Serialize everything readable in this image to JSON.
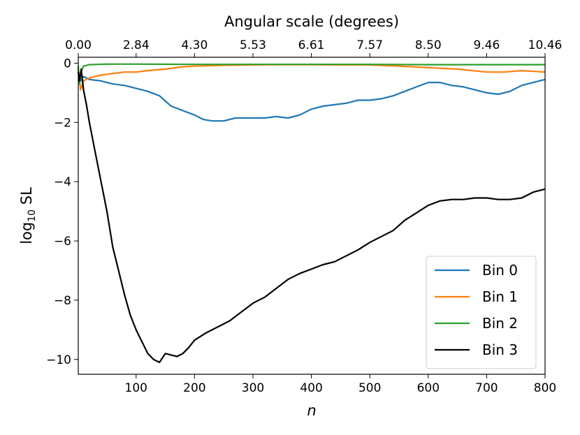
{
  "chart_data": {
    "type": "line",
    "xlabel": "n",
    "ylabel": "log",
    "ylabel_subscript": "10",
    "ylabel_suffix": " SL",
    "top_xlabel": "Angular scale (degrees)",
    "xlim": [
      1,
      800
    ],
    "ylim": [
      -10.5,
      0.2
    ],
    "x_ticks": [
      {
        "value": 100,
        "label": "100"
      },
      {
        "value": 200,
        "label": "200"
      },
      {
        "value": 300,
        "label": "300"
      },
      {
        "value": 400,
        "label": "400"
      },
      {
        "value": 500,
        "label": "500"
      },
      {
        "value": 600,
        "label": "600"
      },
      {
        "value": 700,
        "label": "700"
      },
      {
        "value": 800,
        "label": "800"
      }
    ],
    "y_ticks": [
      {
        "value": 0,
        "label": "0"
      },
      {
        "value": -2,
        "label": "−2"
      },
      {
        "value": -4,
        "label": "−4"
      },
      {
        "value": -6,
        "label": "−6"
      },
      {
        "value": -8,
        "label": "−8"
      },
      {
        "value": -10,
        "label": "−10"
      }
    ],
    "top_ticks": [
      {
        "value": 1,
        "label": "0.00"
      },
      {
        "value": 100,
        "label": "2.84"
      },
      {
        "value": 200,
        "label": "4.30"
      },
      {
        "value": 300,
        "label": "5.53"
      },
      {
        "value": 400,
        "label": "6.61"
      },
      {
        "value": 500,
        "label": "7.57"
      },
      {
        "value": 600,
        "label": "8.50"
      },
      {
        "value": 700,
        "label": "9.46"
      },
      {
        "value": 800,
        "label": "10.46"
      }
    ],
    "legend_position": "lower-right",
    "series": [
      {
        "name": "Bin 0",
        "color": "#1f77b4",
        "points": [
          [
            1,
            -0.3
          ],
          [
            5,
            -0.6
          ],
          [
            10,
            -0.45
          ],
          [
            20,
            -0.55
          ],
          [
            40,
            -0.6
          ],
          [
            60,
            -0.7
          ],
          [
            80,
            -0.75
          ],
          [
            100,
            -0.85
          ],
          [
            120,
            -0.95
          ],
          [
            140,
            -1.1
          ],
          [
            160,
            -1.45
          ],
          [
            180,
            -1.6
          ],
          [
            200,
            -1.75
          ],
          [
            215,
            -1.9
          ],
          [
            230,
            -1.95
          ],
          [
            250,
            -1.95
          ],
          [
            270,
            -1.85
          ],
          [
            300,
            -1.85
          ],
          [
            320,
            -1.85
          ],
          [
            340,
            -1.8
          ],
          [
            360,
            -1.85
          ],
          [
            380,
            -1.75
          ],
          [
            400,
            -1.55
          ],
          [
            420,
            -1.45
          ],
          [
            440,
            -1.4
          ],
          [
            460,
            -1.35
          ],
          [
            480,
            -1.25
          ],
          [
            500,
            -1.25
          ],
          [
            520,
            -1.2
          ],
          [
            540,
            -1.1
          ],
          [
            560,
            -0.95
          ],
          [
            580,
            -0.8
          ],
          [
            600,
            -0.65
          ],
          [
            620,
            -0.65
          ],
          [
            640,
            -0.75
          ],
          [
            660,
            -0.8
          ],
          [
            680,
            -0.9
          ],
          [
            700,
            -1.0
          ],
          [
            720,
            -1.05
          ],
          [
            740,
            -0.95
          ],
          [
            760,
            -0.75
          ],
          [
            780,
            -0.65
          ],
          [
            800,
            -0.55
          ]
        ]
      },
      {
        "name": "Bin 1",
        "color": "#ff7f0e",
        "points": [
          [
            1,
            -0.2
          ],
          [
            5,
            -0.9
          ],
          [
            10,
            -0.6
          ],
          [
            20,
            -0.5
          ],
          [
            40,
            -0.4
          ],
          [
            60,
            -0.35
          ],
          [
            80,
            -0.3
          ],
          [
            100,
            -0.3
          ],
          [
            120,
            -0.25
          ],
          [
            150,
            -0.2
          ],
          [
            180,
            -0.12
          ],
          [
            200,
            -0.1
          ],
          [
            250,
            -0.07
          ],
          [
            300,
            -0.06
          ],
          [
            350,
            -0.05
          ],
          [
            400,
            -0.05
          ],
          [
            450,
            -0.06
          ],
          [
            500,
            -0.06
          ],
          [
            550,
            -0.1
          ],
          [
            600,
            -0.15
          ],
          [
            650,
            -0.2
          ],
          [
            700,
            -0.3
          ],
          [
            730,
            -0.3
          ],
          [
            760,
            -0.25
          ],
          [
            800,
            -0.3
          ]
        ]
      },
      {
        "name": "Bin 2",
        "color": "#2ca02c",
        "points": [
          [
            1,
            -0.1
          ],
          [
            3,
            -0.7
          ],
          [
            6,
            -0.3
          ],
          [
            10,
            -0.1
          ],
          [
            20,
            -0.05
          ],
          [
            50,
            -0.03
          ],
          [
            100,
            -0.03
          ],
          [
            200,
            -0.04
          ],
          [
            300,
            -0.04
          ],
          [
            400,
            -0.04
          ],
          [
            500,
            -0.04
          ],
          [
            600,
            -0.05
          ],
          [
            700,
            -0.05
          ],
          [
            800,
            -0.05
          ]
        ]
      },
      {
        "name": "Bin 3",
        "color": "#000000",
        "points": [
          [
            1,
            -0.3
          ],
          [
            3,
            -0.6
          ],
          [
            6,
            -0.2
          ],
          [
            10,
            -0.9
          ],
          [
            15,
            -1.4
          ],
          [
            20,
            -2.0
          ],
          [
            30,
            -3.0
          ],
          [
            40,
            -4.0
          ],
          [
            50,
            -5.0
          ],
          [
            60,
            -6.2
          ],
          [
            70,
            -7.0
          ],
          [
            80,
            -7.8
          ],
          [
            90,
            -8.5
          ],
          [
            100,
            -9.0
          ],
          [
            110,
            -9.4
          ],
          [
            120,
            -9.8
          ],
          [
            130,
            -10.0
          ],
          [
            140,
            -10.1
          ],
          [
            150,
            -9.8
          ],
          [
            160,
            -9.85
          ],
          [
            170,
            -9.9
          ],
          [
            180,
            -9.8
          ],
          [
            190,
            -9.6
          ],
          [
            200,
            -9.35
          ],
          [
            220,
            -9.1
          ],
          [
            240,
            -8.9
          ],
          [
            260,
            -8.7
          ],
          [
            280,
            -8.4
          ],
          [
            300,
            -8.1
          ],
          [
            320,
            -7.9
          ],
          [
            340,
            -7.6
          ],
          [
            360,
            -7.3
          ],
          [
            380,
            -7.1
          ],
          [
            400,
            -6.95
          ],
          [
            420,
            -6.8
          ],
          [
            440,
            -6.7
          ],
          [
            460,
            -6.5
          ],
          [
            480,
            -6.3
          ],
          [
            500,
            -6.05
          ],
          [
            520,
            -5.85
          ],
          [
            540,
            -5.65
          ],
          [
            560,
            -5.3
          ],
          [
            580,
            -5.05
          ],
          [
            600,
            -4.8
          ],
          [
            620,
            -4.65
          ],
          [
            640,
            -4.6
          ],
          [
            660,
            -4.6
          ],
          [
            680,
            -4.55
          ],
          [
            700,
            -4.55
          ],
          [
            720,
            -4.6
          ],
          [
            740,
            -4.6
          ],
          [
            760,
            -4.55
          ],
          [
            780,
            -4.35
          ],
          [
            800,
            -4.25
          ]
        ]
      }
    ]
  }
}
